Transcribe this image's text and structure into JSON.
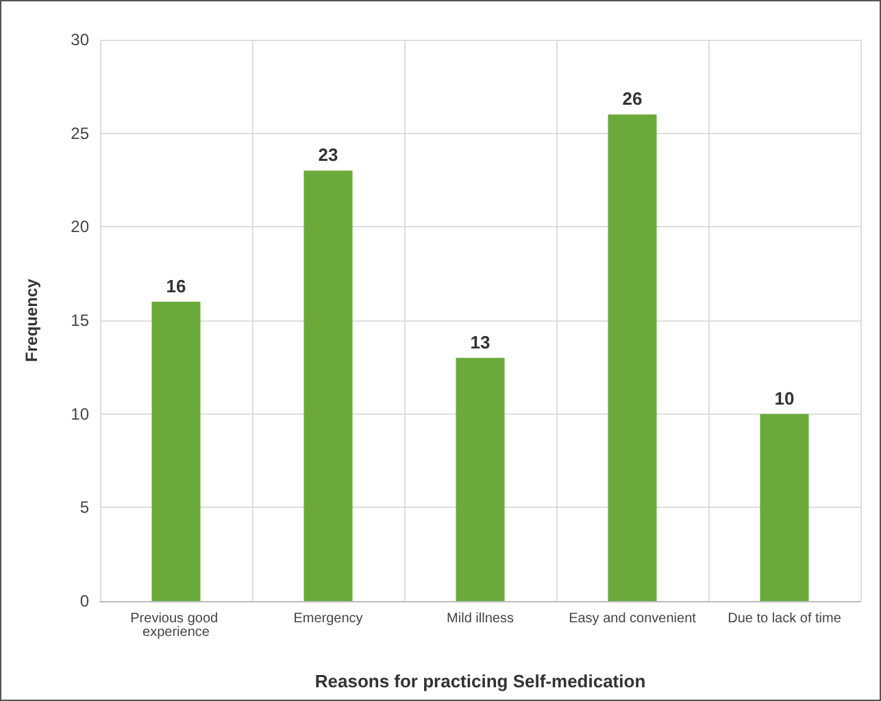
{
  "chart_data": {
    "type": "bar",
    "categories": [
      "Previous good experience",
      "Emergency",
      "Mild illness",
      "Easy and convenient",
      "Due to lack of time"
    ],
    "values": [
      16,
      23,
      13,
      26,
      10
    ],
    "color": "#6aaa3a",
    "xlabel": "Reasons for practicing Self-medication",
    "ylabel": "Frequency",
    "ylim": [
      0,
      30
    ],
    "yticks": [
      0,
      5,
      10,
      15,
      20,
      25,
      30
    ],
    "grid": true,
    "data_labels": true
  }
}
